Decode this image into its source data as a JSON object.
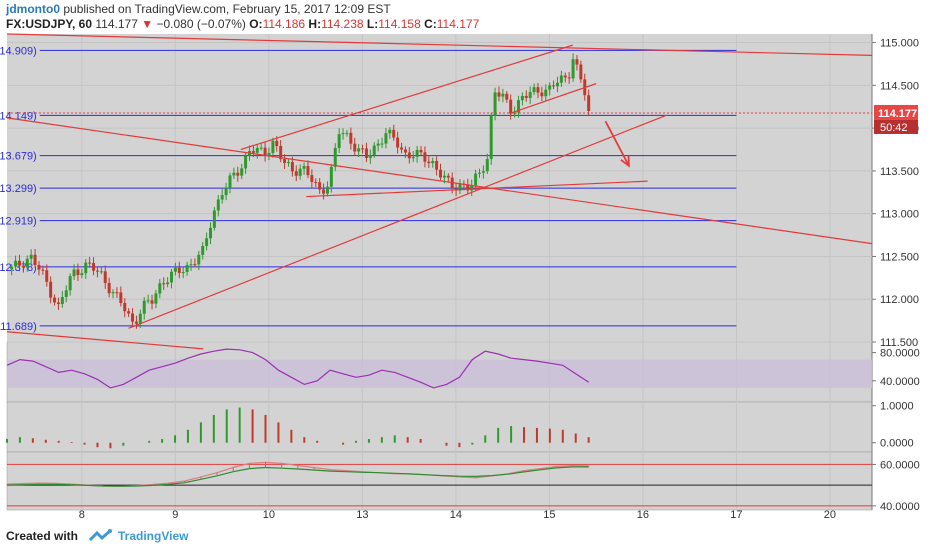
{
  "header": {
    "username": "jdmonto0",
    "published_text": "published on TradingView.com, February 15, 2017 12:09 EST",
    "symbol": "FX:USDJPY, 60",
    "last": "114.177",
    "change": "−0.080 (−0.07%)",
    "open_label": "O:",
    "open": "114.186",
    "high_label": "H:",
    "high": "114.238",
    "low_label": "L:",
    "low": "114.158",
    "close_label": "C:",
    "close": "114.177"
  },
  "footer": {
    "created_with": "Created with",
    "brand": "TradingView"
  },
  "colors": {
    "background": "#d3d3d3",
    "fib": "#2b2bdc",
    "trend": "#e23b3b",
    "rsi": "#9b30b0",
    "rsi_band": "#cbbfd9",
    "bull": "#2e9a2e",
    "bear": "#c0392b"
  },
  "chart_data": {
    "type": "candlestick",
    "instrument": "FX:USDJPY",
    "timeframe": "60",
    "price_axis": {
      "min": 111.5,
      "max": 115.1,
      "ticks": [
        "115.000",
        "114.500",
        "114.000",
        "113.500",
        "113.000",
        "112.500",
        "112.000",
        "111.500"
      ]
    },
    "x_ticks": [
      {
        "label": "8",
        "day": 8
      },
      {
        "label": "9",
        "day": 9
      },
      {
        "label": "10",
        "day": 10
      },
      {
        "label": "13",
        "day": 11
      },
      {
        "label": "14",
        "day": 12
      },
      {
        "label": "15",
        "day": 13
      },
      {
        "label": "16",
        "day": 14
      },
      {
        "label": "17",
        "day": 15
      },
      {
        "label": "20",
        "day": 16
      }
    ],
    "x_range": [
      7.2,
      16.45
    ],
    "last_price_label": "114.177",
    "countdown_label": "50:42",
    "fib_levels": [
      {
        "ratio": "0",
        "price": 114.909,
        "label": "0(114.909)"
      },
      {
        "ratio": "0.236",
        "price": 114.149,
        "label": "0.236(114.149)"
      },
      {
        "ratio": "0.382",
        "price": 113.679,
        "label": "0.382(113.679)"
      },
      {
        "ratio": "0.5",
        "price": 113.299,
        "label": "0.5(113.299)"
      },
      {
        "ratio": "0.618",
        "price": 112.919,
        "label": "0.618(112.919)"
      },
      {
        "ratio": "0.786",
        "price": 112.378,
        "label": "0.786(112.378)"
      },
      {
        "ratio": "1",
        "price": 111.689,
        "label": "1(111.689)"
      }
    ],
    "fib_x_range": [
      7.55,
      15.0
    ],
    "trendlines": [
      {
        "x1": 7.2,
        "y1": 115.1,
        "x2": 16.45,
        "y2": 114.85
      },
      {
        "x1": 7.2,
        "y1": 114.12,
        "x2": 16.45,
        "y2": 112.65
      },
      {
        "x1": 8.5,
        "y1": 111.66,
        "x2": 14.25,
        "y2": 114.15
      },
      {
        "x1": 9.7,
        "y1": 113.75,
        "x2": 13.25,
        "y2": 114.97
      },
      {
        "x1": 10.4,
        "y1": 113.2,
        "x2": 14.05,
        "y2": 113.38
      },
      {
        "x1": 12.6,
        "y1": 114.18,
        "x2": 13.5,
        "y2": 114.52
      },
      {
        "x1": 7.2,
        "y1": 111.62,
        "x2": 9.3,
        "y2": 111.42
      }
    ],
    "arrow": {
      "x1": 13.6,
      "y1": 114.08,
      "x2": 13.85,
      "y2": 113.56
    },
    "price_path": [
      [
        7.25,
        112.35
      ],
      [
        7.45,
        112.5
      ],
      [
        7.6,
        112.25
      ],
      [
        7.75,
        111.9
      ],
      [
        7.9,
        112.3
      ],
      [
        8.05,
        112.4
      ],
      [
        8.2,
        112.3
      ],
      [
        8.35,
        112.05
      ],
      [
        8.45,
        111.9
      ],
      [
        8.55,
        111.72
      ],
      [
        8.65,
        111.9
      ],
      [
        8.75,
        111.98
      ],
      [
        8.85,
        112.2
      ],
      [
        9.0,
        112.3
      ],
      [
        9.15,
        112.4
      ],
      [
        9.3,
        112.55
      ],
      [
        9.4,
        113.0
      ],
      [
        9.5,
        113.25
      ],
      [
        9.6,
        113.4
      ],
      [
        9.7,
        113.55
      ],
      [
        9.8,
        113.75
      ],
      [
        9.95,
        113.7
      ],
      [
        10.05,
        113.85
      ],
      [
        10.15,
        113.6
      ],
      [
        10.25,
        113.5
      ],
      [
        10.35,
        113.55
      ],
      [
        10.45,
        113.4
      ],
      [
        10.55,
        113.25
      ],
      [
        10.65,
        113.4
      ],
      [
        10.75,
        113.95
      ],
      [
        10.85,
        113.9
      ],
      [
        10.95,
        113.75
      ],
      [
        11.05,
        113.65
      ],
      [
        11.15,
        113.8
      ],
      [
        11.25,
        113.95
      ],
      [
        11.35,
        113.85
      ],
      [
        11.45,
        113.7
      ],
      [
        11.55,
        113.7
      ],
      [
        11.65,
        113.65
      ],
      [
        11.75,
        113.6
      ],
      [
        11.85,
        113.45
      ],
      [
        11.95,
        113.3
      ],
      [
        12.05,
        113.35
      ],
      [
        12.15,
        113.3
      ],
      [
        12.25,
        113.45
      ],
      [
        12.35,
        113.7
      ],
      [
        12.4,
        114.45
      ],
      [
        12.5,
        114.35
      ],
      [
        12.6,
        114.2
      ],
      [
        12.7,
        114.35
      ],
      [
        12.8,
        114.4
      ],
      [
        12.9,
        114.45
      ],
      [
        13.0,
        114.45
      ],
      [
        13.1,
        114.55
      ],
      [
        13.2,
        114.6
      ],
      [
        13.25,
        114.85
      ],
      [
        13.32,
        114.6
      ],
      [
        13.38,
        114.4
      ],
      [
        13.42,
        114.177
      ]
    ],
    "panels": [
      {
        "name": "RSI",
        "ticks": [
          "80.0000",
          "40.0000"
        ],
        "ylim": [
          10,
          95
        ],
        "band": [
          30,
          70
        ],
        "values": [
          62,
          70,
          68,
          60,
          52,
          55,
          50,
          42,
          30,
          35,
          45,
          55,
          60,
          65,
          72,
          78,
          82,
          85,
          84,
          80,
          70,
          55,
          45,
          35,
          40,
          55,
          50,
          45,
          48,
          55,
          52,
          45,
          38,
          30,
          35,
          45,
          70,
          82,
          78,
          72,
          70,
          68,
          65,
          62,
          50,
          38
        ]
      },
      {
        "name": "MACD",
        "ticks": [
          "1.0000",
          "0.0000"
        ],
        "ylim": [
          -0.25,
          1.1
        ],
        "histogram": [
          0.1,
          0.15,
          0.12,
          0.08,
          0.05,
          0.02,
          -0.05,
          -0.12,
          -0.15,
          -0.08,
          0.0,
          0.05,
          0.1,
          0.2,
          0.35,
          0.55,
          0.75,
          0.9,
          0.95,
          0.9,
          0.75,
          0.55,
          0.35,
          0.15,
          0.05,
          0.0,
          -0.05,
          0.05,
          0.1,
          0.15,
          0.2,
          0.15,
          0.1,
          0.0,
          -0.08,
          -0.12,
          -0.05,
          0.2,
          0.4,
          0.45,
          0.42,
          0.4,
          0.38,
          0.35,
          0.25,
          0.15
        ]
      },
      {
        "name": "Indicator",
        "ticks": [
          "60.0000",
          "40.0000"
        ],
        "ylim": [
          38,
          66
        ],
        "levels": [
          60,
          40
        ],
        "mid": 50,
        "line1": [
          50.5,
          50.8,
          51.0,
          50.9,
          50.5,
          50.0,
          49.6,
          49.5,
          49.8,
          50.3,
          51.0,
          52.0,
          54.0,
          56.0,
          58.5,
          60.5,
          61.0,
          60.5,
          59.5,
          58.5,
          57.5,
          57.0,
          56.5,
          56.0,
          55.5,
          55.5,
          55.0,
          54.5,
          54.0,
          53.5,
          54.5,
          55.5,
          57.0,
          58.0,
          59.0,
          59.5,
          59.3
        ],
        "line2": [
          50.0,
          50.2,
          50.4,
          50.4,
          50.2,
          49.9,
          49.6,
          49.5,
          49.6,
          49.9,
          50.4,
          51.2,
          52.8,
          54.5,
          56.5,
          58.0,
          58.5,
          58.2,
          57.8,
          57.3,
          56.8,
          56.5,
          56.2,
          56.0,
          55.7,
          55.4,
          55.0,
          54.6,
          54.3,
          54.2,
          54.6,
          55.3,
          56.4,
          57.4,
          58.3,
          58.8,
          58.8
        ]
      }
    ]
  }
}
